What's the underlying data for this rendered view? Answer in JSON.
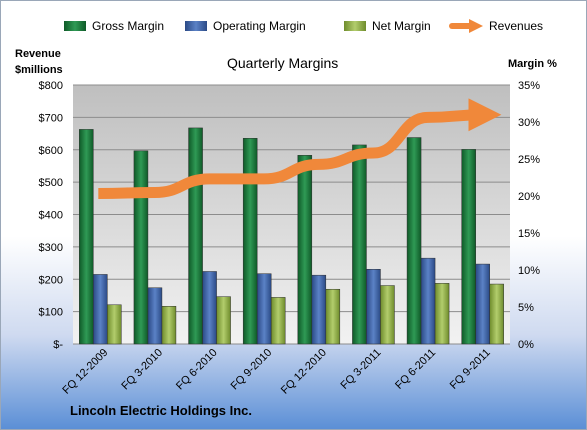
{
  "chart_data": {
    "type": "bar",
    "title": "Quarterly Margins",
    "ylabel_left_line1": "Revenue",
    "ylabel_left_line2": "$millions",
    "ylabel_right": "Margin %",
    "categories": [
      "FQ 12-2009",
      "FQ 3-2010",
      "FQ 6-2010",
      "FQ 9-2010",
      "FQ 12-2010",
      "FQ 3-2011",
      "FQ 6-2011",
      "FQ 9-2011"
    ],
    "left_axis": {
      "min": 0,
      "max": 800,
      "ticks": [
        "$-",
        "$100",
        "$200",
        "$300",
        "$400",
        "$500",
        "$600",
        "$700",
        "$800"
      ]
    },
    "right_axis": {
      "min": 0,
      "max": 35,
      "ticks": [
        "0%",
        "5%",
        "10%",
        "15%",
        "20%",
        "25%",
        "30%",
        "35%"
      ]
    },
    "series": [
      {
        "name": "Gross Margin",
        "type": "bar",
        "axis": "right",
        "color": "#1f7a3c",
        "values": [
          29.0,
          26.1,
          29.2,
          27.8,
          25.5,
          26.9,
          27.9,
          26.3
        ]
      },
      {
        "name": "Operating Margin",
        "type": "bar",
        "axis": "right",
        "color": "#3f63a8",
        "values": [
          9.4,
          7.6,
          9.8,
          9.5,
          9.3,
          10.1,
          11.6,
          10.8
        ]
      },
      {
        "name": "Net Margin",
        "type": "bar",
        "axis": "right",
        "color": "#8fae47",
        "values": [
          5.3,
          5.1,
          6.4,
          6.3,
          7.4,
          7.9,
          8.2,
          8.1
        ]
      },
      {
        "name": "Revenues",
        "type": "line",
        "axis": "left",
        "color": "#f0883a",
        "values": [
          465,
          468,
          510,
          510,
          555,
          590,
          700,
          708
        ]
      }
    ],
    "grid": true,
    "legend_position": "top"
  },
  "company": "Lincoln Electric Holdings Inc."
}
